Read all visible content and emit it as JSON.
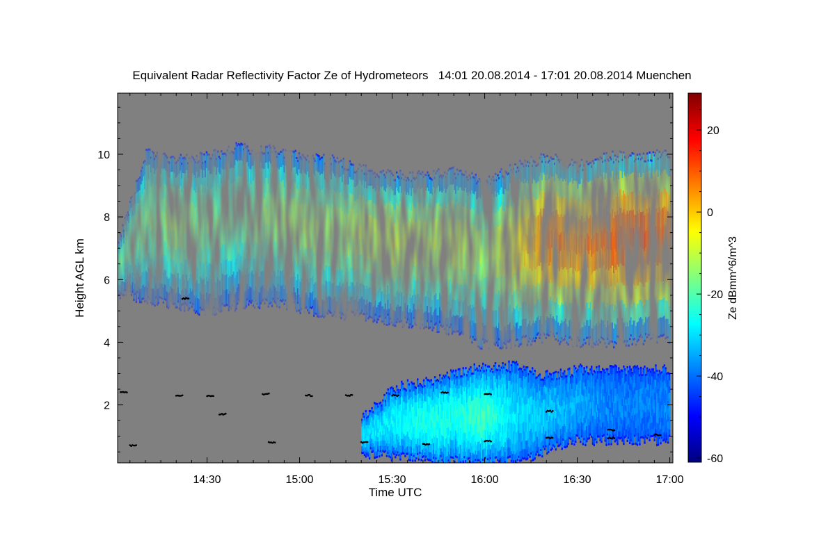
{
  "chart_data": {
    "type": "heatmap",
    "title": "Equivalent Radar Reflectivity Factor Ze of Hydrometeors   14:01 20.08.2014 - 17:01 20.08.2014 Muenchen",
    "xlabel": "Time UTC",
    "ylabel": "Height AGL km",
    "x_ticks": [
      "14:30",
      "15:00",
      "15:30",
      "16:00",
      "16:30",
      "17:00"
    ],
    "x_tick_minutes": [
      30,
      60,
      90,
      120,
      150,
      180
    ],
    "xlim_minutes": [
      1,
      181
    ],
    "y_ticks": [
      "2",
      "4",
      "6",
      "8",
      "10"
    ],
    "y_tick_values": [
      2,
      4,
      6,
      8,
      10
    ],
    "ylim": [
      0.15,
      11.95
    ],
    "colorbar": {
      "label": "Ze dBmm^6/m^3",
      "ticks": [
        "-60",
        "-40",
        "-20",
        "0",
        "20"
      ],
      "tick_values": [
        -60,
        -40,
        -20,
        0,
        20
      ],
      "range": [
        -61,
        29
      ],
      "colormap": [
        "#00007f",
        "#0000ff",
        "#0080ff",
        "#00ffff",
        "#80ff80",
        "#ffff00",
        "#ff8000",
        "#ff0000",
        "#7f0000"
      ]
    },
    "background_color": "#808080",
    "upper_cloud": {
      "time_minutes": [
        0,
        10,
        20,
        30,
        40,
        50,
        60,
        70,
        80,
        90,
        100,
        110,
        120,
        130,
        140,
        150,
        160,
        170,
        180
      ],
      "top_km": [
        6.8,
        10.0,
        9.8,
        9.9,
        10.2,
        10.1,
        9.9,
        9.8,
        9.5,
        9.3,
        9.3,
        9.4,
        9.1,
        9.6,
        9.9,
        9.6,
        9.9,
        9.9,
        10.0
      ],
      "base_km": [
        5.6,
        5.4,
        5.2,
        5.0,
        5.2,
        5.3,
        5.1,
        4.9,
        4.9,
        4.7,
        4.6,
        4.4,
        3.9,
        4.0,
        4.2,
        4.0,
        4.0,
        4.1,
        4.1
      ],
      "peak_dbz": [
        -20,
        -18,
        -15,
        -18,
        -20,
        -15,
        -14,
        -15,
        -12,
        -10,
        -12,
        -10,
        -15,
        -5,
        8,
        5,
        10,
        12,
        8
      ]
    },
    "lower_cloud": {
      "time_minutes": [
        80,
        90,
        100,
        110,
        120,
        130,
        140,
        150,
        160,
        170,
        180
      ],
      "top_km": [
        1.5,
        2.5,
        2.7,
        3.0,
        3.2,
        3.2,
        2.9,
        3.1,
        3.1,
        3.1,
        3.1
      ],
      "base_km": [
        0.5,
        0.4,
        0.3,
        0.2,
        0.15,
        0.2,
        0.6,
        0.9,
        0.9,
        0.9,
        0.9
      ],
      "peak_dbz": [
        -30,
        -28,
        -25,
        -25,
        -22,
        -30,
        -32,
        -35,
        -38,
        -38,
        -38
      ]
    },
    "cloud_base_detection_km": [
      {
        "t": 2,
        "h": 2.4
      },
      {
        "t": 20,
        "h": 2.3
      },
      {
        "t": 30,
        "h": 2.3
      },
      {
        "t": 34,
        "h": 1.7
      },
      {
        "t": 48,
        "h": 2.35
      },
      {
        "t": 62,
        "h": 2.3
      },
      {
        "t": 75,
        "h": 2.3
      },
      {
        "t": 90,
        "h": 2.3
      },
      {
        "t": 106,
        "h": 2.4
      },
      {
        "t": 120,
        "h": 2.35
      },
      {
        "t": 140,
        "h": 1.8
      },
      {
        "t": 160,
        "h": 1.2
      },
      {
        "t": 5,
        "h": 0.7
      },
      {
        "t": 50,
        "h": 0.8
      },
      {
        "t": 80,
        "h": 0.8
      },
      {
        "t": 100,
        "h": 0.75
      },
      {
        "t": 120,
        "h": 0.85
      },
      {
        "t": 140,
        "h": 0.95
      },
      {
        "t": 160,
        "h": 0.95
      },
      {
        "t": 175,
        "h": 1.05
      },
      {
        "t": 22,
        "h": 5.4
      }
    ]
  }
}
